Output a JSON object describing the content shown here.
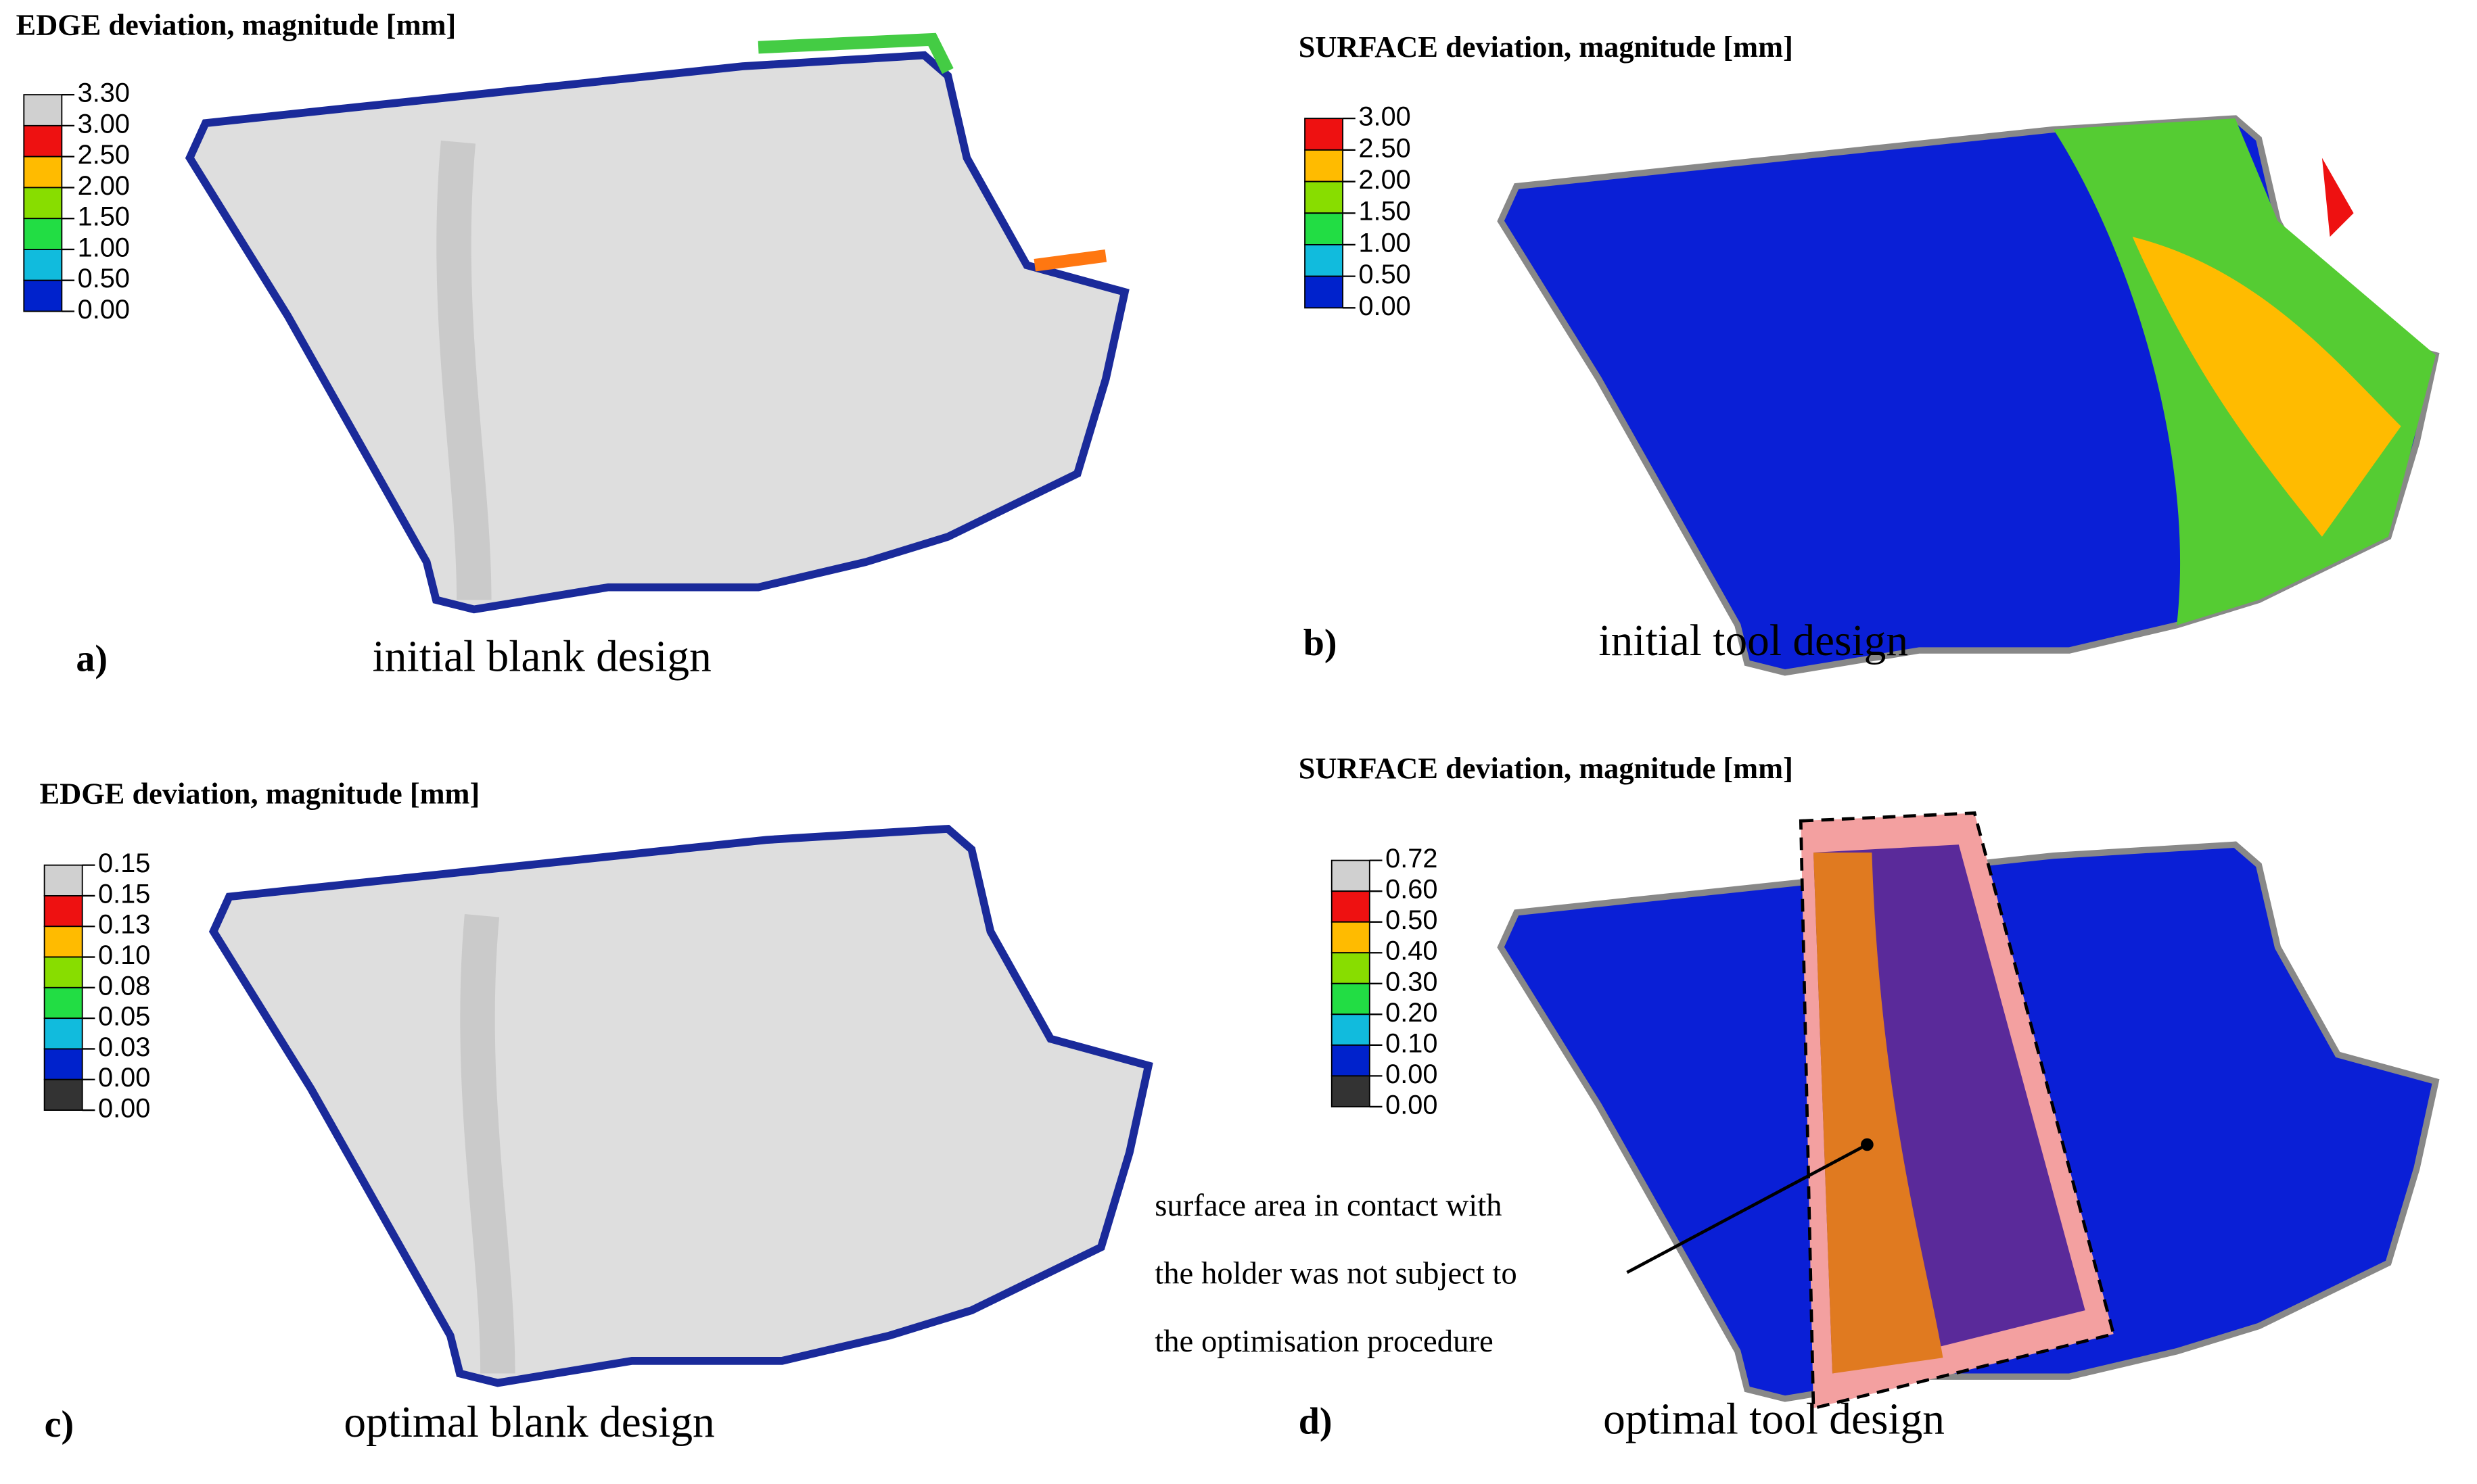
{
  "panels": [
    {
      "title": "EDGE deviation, magnitude [mm]",
      "legend": {
        "labels": [
          "3.30",
          "3.00",
          "2.50",
          "2.00",
          "1.50",
          "1.00",
          "0.50",
          "0.00"
        ],
        "colors": [
          "#d0d0d0",
          "#ee1111",
          "#ffbb00",
          "#88dd00",
          "#22dd44",
          "#11bbdd",
          "#0022cc"
        ]
      },
      "label": "a)",
      "caption": "initial blank design"
    },
    {
      "title": "SURFACE deviation, magnitude [mm]",
      "legend": {
        "labels": [
          "3.00",
          "2.50",
          "2.00",
          "1.50",
          "1.00",
          "0.50",
          "0.00"
        ],
        "colors": [
          "#ee1111",
          "#ffbb00",
          "#88dd00",
          "#22dd44",
          "#11bbdd",
          "#0022cc"
        ]
      },
      "label": "b)",
      "caption": "initial tool design"
    },
    {
      "title": "EDGE deviation, magnitude [mm]",
      "legend": {
        "labels": [
          "0.15",
          "0.15",
          "0.13",
          "0.10",
          "0.08",
          "0.05",
          "0.03",
          "0.00",
          "0.00"
        ],
        "colors": [
          "#d0d0d0",
          "#ee1111",
          "#ffbb00",
          "#88dd00",
          "#22dd44",
          "#11bbdd",
          "#0022cc",
          "#333333"
        ]
      },
      "label": "c)",
      "caption": "optimal blank design"
    },
    {
      "title": "SURFACE deviation, magnitude [mm]",
      "legend": {
        "labels": [
          "0.72",
          "0.60",
          "0.50",
          "0.40",
          "0.30",
          "0.20",
          "0.10",
          "0.00",
          "0.00"
        ],
        "colors": [
          "#d0d0d0",
          "#ee1111",
          "#ffbb00",
          "#88dd00",
          "#22dd44",
          "#11bbdd",
          "#0022cc",
          "#333333"
        ]
      },
      "label": "d)",
      "caption": "optimal tool design"
    }
  ],
  "annotation": {
    "lines": [
      "surface area in contact with",
      "the holder was not subject to",
      "the optimisation procedure"
    ]
  }
}
